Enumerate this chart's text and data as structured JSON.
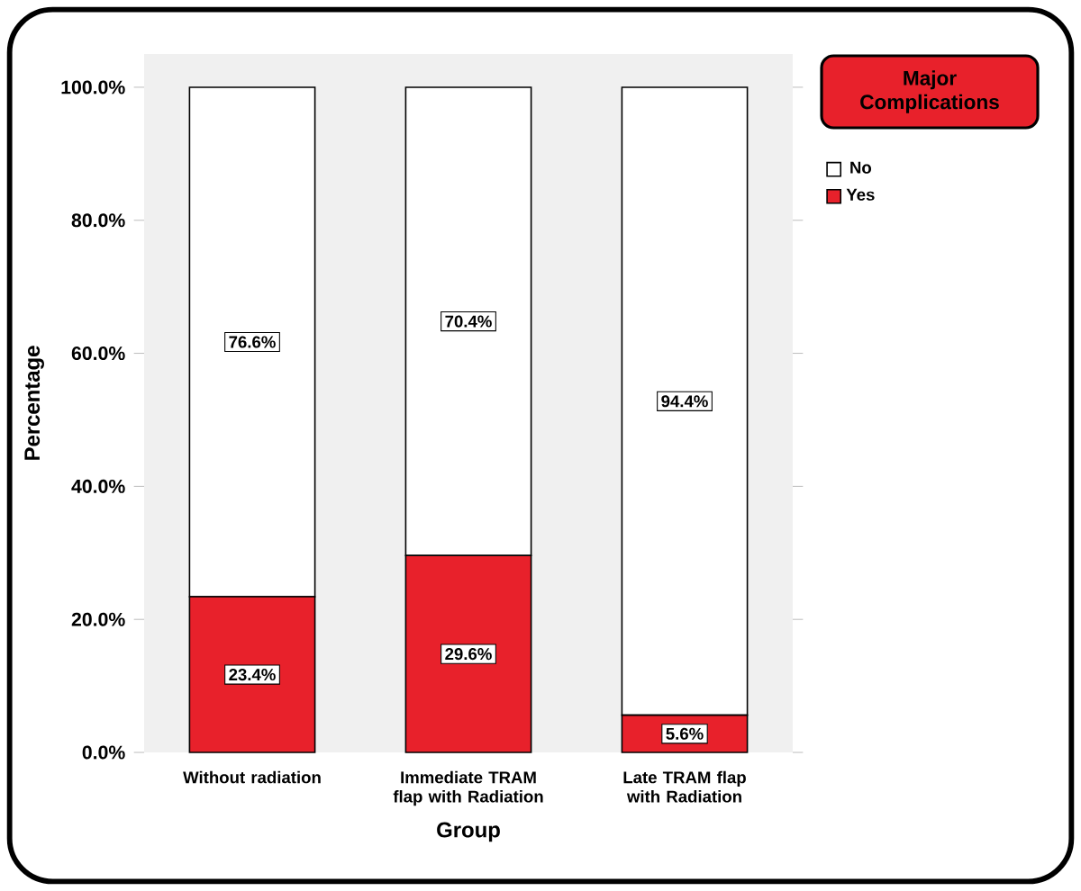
{
  "chart_data": {
    "type": "bar",
    "stacked": true,
    "xlabel": "Group",
    "ylabel": "Percentage",
    "legend_title": "Major Complications",
    "categories": [
      "Without radiation",
      "Immediate TRAM flap with Radiation",
      "Late TRAM flap with Radiation"
    ],
    "series": [
      {
        "name": "Yes",
        "color": "#e8212b",
        "values": [
          23.4,
          29.6,
          5.6
        ],
        "value_labels": [
          "23.4%",
          "29.6%",
          "5.6%"
        ]
      },
      {
        "name": "No",
        "color": "#ffffff",
        "values": [
          76.6,
          70.4,
          94.4
        ],
        "value_labels": [
          "76.6%",
          "70.4%",
          "94.4%"
        ]
      }
    ],
    "ylim": [
      0,
      105
    ],
    "yticks": [
      {
        "value": 0,
        "label": "0.0%"
      },
      {
        "value": 20,
        "label": "20.0%"
      },
      {
        "value": 40,
        "label": "40.0%"
      },
      {
        "value": 60,
        "label": "60.0%"
      },
      {
        "value": 80,
        "label": "80.0%"
      },
      {
        "value": 100,
        "label": "100.0%"
      }
    ],
    "legend": "top right"
  }
}
